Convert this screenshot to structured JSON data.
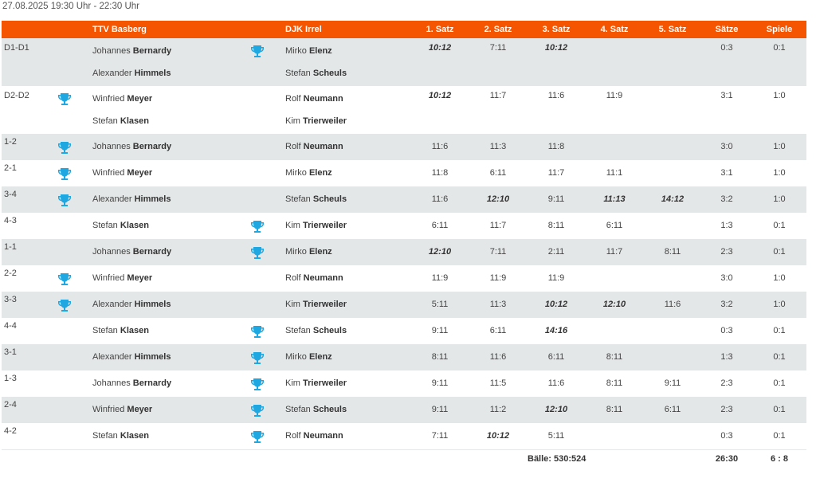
{
  "date_line": "27.08.2025 19:30 Uhr - 22:30 Uhr",
  "colors": {
    "header_bg": "#f55500",
    "trophy": "#1ea7e1",
    "alt_row": "#e4e7e8"
  },
  "header": {
    "home_team": "TTV Basberg",
    "away_team": "DJK Irrel",
    "sets": [
      "1. Satz",
      "2. Satz",
      "3. Satz",
      "4. Satz",
      "5. Satz"
    ],
    "saetze": "Sätze",
    "spiele": "Spiele"
  },
  "rows": [
    {
      "label": "D1-D1",
      "home": [
        [
          "Johannes",
          "Bernardy"
        ],
        [
          "Alexander",
          "Himmels"
        ]
      ],
      "away": [
        [
          "Mirko",
          "Elenz"
        ],
        [
          "Stefan",
          "Scheuls"
        ]
      ],
      "sets": [
        "10:12",
        "7:11",
        "10:12",
        "",
        ""
      ],
      "saetze": "0:3",
      "spiele": "0:1",
      "winner": "away"
    },
    {
      "label": "D2-D2",
      "home": [
        [
          "Winfried",
          "Meyer"
        ],
        [
          "Stefan",
          "Klasen"
        ]
      ],
      "away": [
        [
          "Rolf",
          "Neumann"
        ],
        [
          "Kim",
          "Trierweiler"
        ]
      ],
      "sets": [
        "10:12",
        "11:7",
        "11:6",
        "11:9",
        ""
      ],
      "saetze": "3:1",
      "spiele": "1:0",
      "winner": "home"
    },
    {
      "label": "1-2",
      "home": [
        [
          "Johannes",
          "Bernardy"
        ]
      ],
      "away": [
        [
          "Rolf",
          "Neumann"
        ]
      ],
      "sets": [
        "11:6",
        "11:3",
        "11:8",
        "",
        ""
      ],
      "saetze": "3:0",
      "spiele": "1:0",
      "winner": "home"
    },
    {
      "label": "2-1",
      "home": [
        [
          "Winfried",
          "Meyer"
        ]
      ],
      "away": [
        [
          "Mirko",
          "Elenz"
        ]
      ],
      "sets": [
        "11:8",
        "6:11",
        "11:7",
        "11:1",
        ""
      ],
      "saetze": "3:1",
      "spiele": "1:0",
      "winner": "home"
    },
    {
      "label": "3-4",
      "home": [
        [
          "Alexander",
          "Himmels"
        ]
      ],
      "away": [
        [
          "Stefan",
          "Scheuls"
        ]
      ],
      "sets": [
        "11:6",
        "12:10",
        "9:11",
        "11:13",
        "14:12"
      ],
      "saetze": "3:2",
      "spiele": "1:0",
      "winner": "home"
    },
    {
      "label": "4-3",
      "home": [
        [
          "Stefan",
          "Klasen"
        ]
      ],
      "away": [
        [
          "Kim",
          "Trierweiler"
        ]
      ],
      "sets": [
        "6:11",
        "11:7",
        "8:11",
        "6:11",
        ""
      ],
      "saetze": "1:3",
      "spiele": "0:1",
      "winner": "away"
    },
    {
      "label": "1-1",
      "home": [
        [
          "Johannes",
          "Bernardy"
        ]
      ],
      "away": [
        [
          "Mirko",
          "Elenz"
        ]
      ],
      "sets": [
        "12:10",
        "7:11",
        "2:11",
        "11:7",
        "8:11"
      ],
      "saetze": "2:3",
      "spiele": "0:1",
      "winner": "away"
    },
    {
      "label": "2-2",
      "home": [
        [
          "Winfried",
          "Meyer"
        ]
      ],
      "away": [
        [
          "Rolf",
          "Neumann"
        ]
      ],
      "sets": [
        "11:9",
        "11:9",
        "11:9",
        "",
        ""
      ],
      "saetze": "3:0",
      "spiele": "1:0",
      "winner": "home"
    },
    {
      "label": "3-3",
      "home": [
        [
          "Alexander",
          "Himmels"
        ]
      ],
      "away": [
        [
          "Kim",
          "Trierweiler"
        ]
      ],
      "sets": [
        "5:11",
        "11:3",
        "10:12",
        "12:10",
        "11:6"
      ],
      "saetze": "3:2",
      "spiele": "1:0",
      "winner": "home"
    },
    {
      "label": "4-4",
      "home": [
        [
          "Stefan",
          "Klasen"
        ]
      ],
      "away": [
        [
          "Stefan",
          "Scheuls"
        ]
      ],
      "sets": [
        "9:11",
        "6:11",
        "14:16",
        "",
        ""
      ],
      "saetze": "0:3",
      "spiele": "0:1",
      "winner": "away"
    },
    {
      "label": "3-1",
      "home": [
        [
          "Alexander",
          "Himmels"
        ]
      ],
      "away": [
        [
          "Mirko",
          "Elenz"
        ]
      ],
      "sets": [
        "8:11",
        "11:6",
        "6:11",
        "8:11",
        ""
      ],
      "saetze": "1:3",
      "spiele": "0:1",
      "winner": "away"
    },
    {
      "label": "1-3",
      "home": [
        [
          "Johannes",
          "Bernardy"
        ]
      ],
      "away": [
        [
          "Kim",
          "Trierweiler"
        ]
      ],
      "sets": [
        "9:11",
        "11:5",
        "11:6",
        "8:11",
        "9:11"
      ],
      "saetze": "2:3",
      "spiele": "0:1",
      "winner": "away"
    },
    {
      "label": "2-4",
      "home": [
        [
          "Winfried",
          "Meyer"
        ]
      ],
      "away": [
        [
          "Stefan",
          "Scheuls"
        ]
      ],
      "sets": [
        "9:11",
        "11:2",
        "12:10",
        "8:11",
        "6:11"
      ],
      "saetze": "2:3",
      "spiele": "0:1",
      "winner": "away"
    },
    {
      "label": "4-2",
      "home": [
        [
          "Stefan",
          "Klasen"
        ]
      ],
      "away": [
        [
          "Rolf",
          "Neumann"
        ]
      ],
      "sets": [
        "7:11",
        "10:12",
        "5:11",
        "",
        ""
      ],
      "saetze": "0:3",
      "spiele": "0:1",
      "winner": "away"
    }
  ],
  "footer": {
    "baelle": "Bälle: 530:524",
    "saetze_total": "26:30",
    "spiele_total": "6 : 8"
  }
}
